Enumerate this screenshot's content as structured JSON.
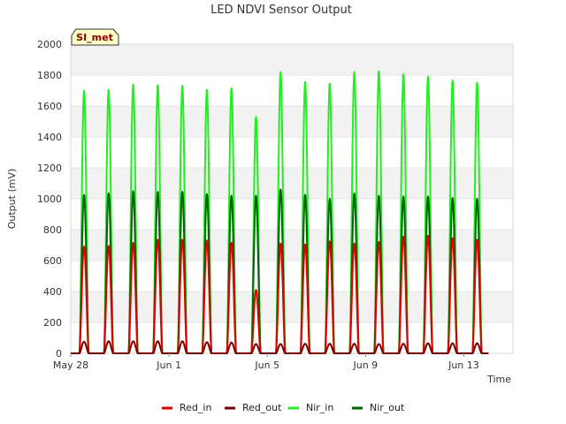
{
  "chart_data": {
    "type": "line",
    "title": "LED NDVI Sensor Output",
    "badge": "SI_met",
    "xlabel": "Time",
    "ylabel": "Output (mV)",
    "ylim": [
      0,
      2000
    ],
    "yticks": [
      0,
      200,
      400,
      600,
      800,
      1000,
      1200,
      1400,
      1600,
      1800,
      2000
    ],
    "xlim": [
      "2024-05-28",
      "2024-06-15"
    ],
    "xticks": [
      {
        "date": "2024-05-28",
        "label": "May 28"
      },
      {
        "date": "2024-06-01",
        "label": "Jun 1"
      },
      {
        "date": "2024-06-05",
        "label": "Jun 5"
      },
      {
        "date": "2024-06-09",
        "label": "Jun 9"
      },
      {
        "date": "2024-06-13",
        "label": "Jun 13"
      }
    ],
    "grid": true,
    "legend_position": "bottom",
    "daily_peak_hour": 13,
    "daily_active_hours": 9,
    "series": [
      {
        "name": "Red_in",
        "color": "#e00000",
        "daily_peaks": [
          {
            "date": "2024-05-28",
            "value": 690
          },
          {
            "date": "2024-05-29",
            "value": 695
          },
          {
            "date": "2024-05-30",
            "value": 715
          },
          {
            "date": "2024-05-31",
            "value": 735
          },
          {
            "date": "2024-06-01",
            "value": 735
          },
          {
            "date": "2024-06-02",
            "value": 730
          },
          {
            "date": "2024-06-03",
            "value": 715
          },
          {
            "date": "2024-06-04",
            "value": 410
          },
          {
            "date": "2024-06-05",
            "value": 710
          },
          {
            "date": "2024-06-06",
            "value": 705
          },
          {
            "date": "2024-06-07",
            "value": 725
          },
          {
            "date": "2024-06-08",
            "value": 710
          },
          {
            "date": "2024-06-09",
            "value": 720
          },
          {
            "date": "2024-06-10",
            "value": 755
          },
          {
            "date": "2024-06-11",
            "value": 760
          },
          {
            "date": "2024-06-12",
            "value": 745
          },
          {
            "date": "2024-06-13",
            "value": 735
          }
        ]
      },
      {
        "name": "Red_out",
        "color": "#7a0000",
        "daily_peaks": [
          {
            "date": "2024-05-28",
            "value": 75
          },
          {
            "date": "2024-05-29",
            "value": 78
          },
          {
            "date": "2024-05-30",
            "value": 78
          },
          {
            "date": "2024-05-31",
            "value": 78
          },
          {
            "date": "2024-06-01",
            "value": 78
          },
          {
            "date": "2024-06-02",
            "value": 72
          },
          {
            "date": "2024-06-03",
            "value": 70
          },
          {
            "date": "2024-06-04",
            "value": 60
          },
          {
            "date": "2024-06-05",
            "value": 60
          },
          {
            "date": "2024-06-06",
            "value": 62
          },
          {
            "date": "2024-06-07",
            "value": 62
          },
          {
            "date": "2024-06-08",
            "value": 62
          },
          {
            "date": "2024-06-09",
            "value": 60
          },
          {
            "date": "2024-06-10",
            "value": 62
          },
          {
            "date": "2024-06-11",
            "value": 65
          },
          {
            "date": "2024-06-12",
            "value": 65
          },
          {
            "date": "2024-06-13",
            "value": 65
          }
        ]
      },
      {
        "name": "Nir_in",
        "color": "#22ee22",
        "daily_peaks": [
          {
            "date": "2024-05-28",
            "value": 1700
          },
          {
            "date": "2024-05-29",
            "value": 1705
          },
          {
            "date": "2024-05-30",
            "value": 1740
          },
          {
            "date": "2024-05-31",
            "value": 1735
          },
          {
            "date": "2024-06-01",
            "value": 1730
          },
          {
            "date": "2024-06-02",
            "value": 1705
          },
          {
            "date": "2024-06-03",
            "value": 1715
          },
          {
            "date": "2024-06-04",
            "value": 1530
          },
          {
            "date": "2024-06-05",
            "value": 1820
          },
          {
            "date": "2024-06-06",
            "value": 1755
          },
          {
            "date": "2024-06-07",
            "value": 1745
          },
          {
            "date": "2024-06-08",
            "value": 1820
          },
          {
            "date": "2024-06-09",
            "value": 1825
          },
          {
            "date": "2024-06-10",
            "value": 1805
          },
          {
            "date": "2024-06-11",
            "value": 1790
          },
          {
            "date": "2024-06-12",
            "value": 1765
          },
          {
            "date": "2024-06-13",
            "value": 1750
          }
        ]
      },
      {
        "name": "Nir_out",
        "color": "#006400",
        "daily_peaks": [
          {
            "date": "2024-05-28",
            "value": 1025
          },
          {
            "date": "2024-05-29",
            "value": 1035
          },
          {
            "date": "2024-05-30",
            "value": 1050
          },
          {
            "date": "2024-05-31",
            "value": 1045
          },
          {
            "date": "2024-06-01",
            "value": 1045
          },
          {
            "date": "2024-06-02",
            "value": 1030
          },
          {
            "date": "2024-06-03",
            "value": 1020
          },
          {
            "date": "2024-06-04",
            "value": 1020
          },
          {
            "date": "2024-06-05",
            "value": 1060
          },
          {
            "date": "2024-06-06",
            "value": 1025
          },
          {
            "date": "2024-06-07",
            "value": 1000
          },
          {
            "date": "2024-06-08",
            "value": 1035
          },
          {
            "date": "2024-06-09",
            "value": 1020
          },
          {
            "date": "2024-06-10",
            "value": 1015
          },
          {
            "date": "2024-06-11",
            "value": 1015
          },
          {
            "date": "2024-06-12",
            "value": 1005
          },
          {
            "date": "2024-06-13",
            "value": 1000
          }
        ]
      }
    ]
  }
}
